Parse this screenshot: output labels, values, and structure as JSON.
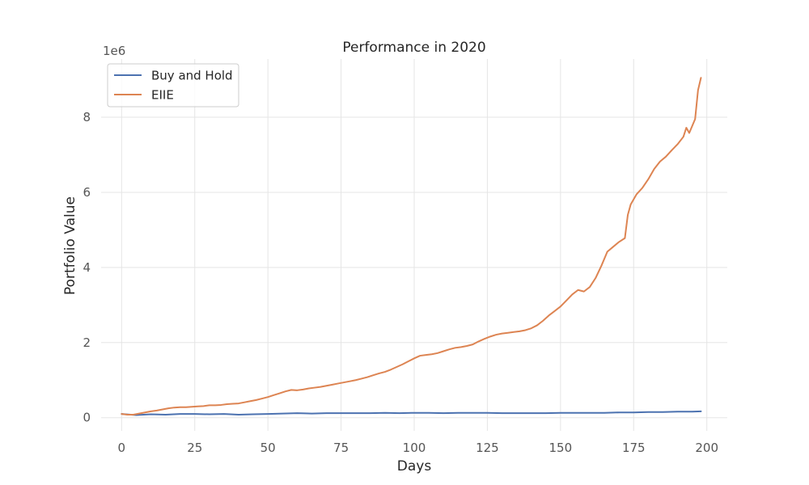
{
  "chart_data": {
    "type": "line",
    "title": "Performance in 2020",
    "xlabel": "Days",
    "ylabel": "Portfolio Value",
    "y_offset_label": "1e6",
    "xlim": [
      -7,
      207
    ],
    "ylim": [
      -0.35,
      9.55
    ],
    "x_ticks": [
      0,
      25,
      50,
      75,
      100,
      125,
      150,
      175,
      200
    ],
    "y_ticks": [
      0,
      2,
      4,
      6,
      8
    ],
    "grid": true,
    "legend_position": "top-left",
    "series": [
      {
        "name": "Buy and Hold",
        "color": "#4c72b0",
        "x": [
          0,
          5,
          10,
          15,
          20,
          25,
          30,
          35,
          40,
          45,
          50,
          55,
          60,
          65,
          70,
          75,
          80,
          85,
          90,
          95,
          100,
          105,
          110,
          115,
          120,
          125,
          130,
          135,
          140,
          145,
          150,
          155,
          160,
          165,
          170,
          175,
          180,
          185,
          190,
          195,
          198
        ],
        "y": [
          0.1,
          0.07,
          0.09,
          0.08,
          0.1,
          0.1,
          0.09,
          0.1,
          0.08,
          0.09,
          0.1,
          0.11,
          0.12,
          0.11,
          0.12,
          0.12,
          0.12,
          0.12,
          0.13,
          0.12,
          0.13,
          0.13,
          0.12,
          0.13,
          0.13,
          0.13,
          0.12,
          0.12,
          0.12,
          0.12,
          0.13,
          0.13,
          0.13,
          0.13,
          0.14,
          0.14,
          0.15,
          0.15,
          0.16,
          0.16,
          0.17
        ]
      },
      {
        "name": "EIIE",
        "color": "#dd8452",
        "x": [
          0,
          2,
          4,
          6,
          8,
          10,
          12,
          14,
          16,
          18,
          20,
          22,
          24,
          26,
          28,
          30,
          32,
          34,
          36,
          38,
          40,
          42,
          44,
          46,
          48,
          50,
          52,
          54,
          56,
          58,
          60,
          62,
          64,
          66,
          68,
          70,
          72,
          74,
          76,
          78,
          80,
          82,
          84,
          86,
          88,
          90,
          92,
          94,
          96,
          98,
          100,
          102,
          104,
          106,
          108,
          110,
          112,
          114,
          116,
          118,
          120,
          122,
          124,
          126,
          128,
          130,
          132,
          134,
          136,
          138,
          140,
          142,
          144,
          146,
          148,
          150,
          152,
          154,
          156,
          158,
          160,
          162,
          164,
          166,
          168,
          170,
          172,
          173,
          174,
          176,
          178,
          180,
          182,
          184,
          186,
          188,
          190,
          192,
          193,
          194,
          196,
          197,
          198
        ],
        "y": [
          0.1,
          0.08,
          0.08,
          0.11,
          0.14,
          0.17,
          0.19,
          0.22,
          0.25,
          0.27,
          0.28,
          0.28,
          0.29,
          0.3,
          0.31,
          0.33,
          0.33,
          0.34,
          0.36,
          0.37,
          0.38,
          0.41,
          0.44,
          0.47,
          0.51,
          0.55,
          0.6,
          0.65,
          0.7,
          0.74,
          0.73,
          0.75,
          0.78,
          0.8,
          0.82,
          0.85,
          0.88,
          0.91,
          0.94,
          0.97,
          1.0,
          1.04,
          1.08,
          1.13,
          1.18,
          1.22,
          1.28,
          1.35,
          1.42,
          1.5,
          1.58,
          1.65,
          1.67,
          1.69,
          1.72,
          1.77,
          1.82,
          1.86,
          1.88,
          1.91,
          1.95,
          2.03,
          2.1,
          2.16,
          2.21,
          2.24,
          2.26,
          2.28,
          2.3,
          2.33,
          2.38,
          2.46,
          2.58,
          2.72,
          2.84,
          2.96,
          3.12,
          3.28,
          3.4,
          3.36,
          3.48,
          3.72,
          4.05,
          4.42,
          4.55,
          4.68,
          4.78,
          5.4,
          5.68,
          5.95,
          6.12,
          6.35,
          6.62,
          6.82,
          6.95,
          7.12,
          7.28,
          7.48,
          7.72,
          7.58,
          7.95,
          8.72,
          9.05
        ]
      }
    ]
  }
}
